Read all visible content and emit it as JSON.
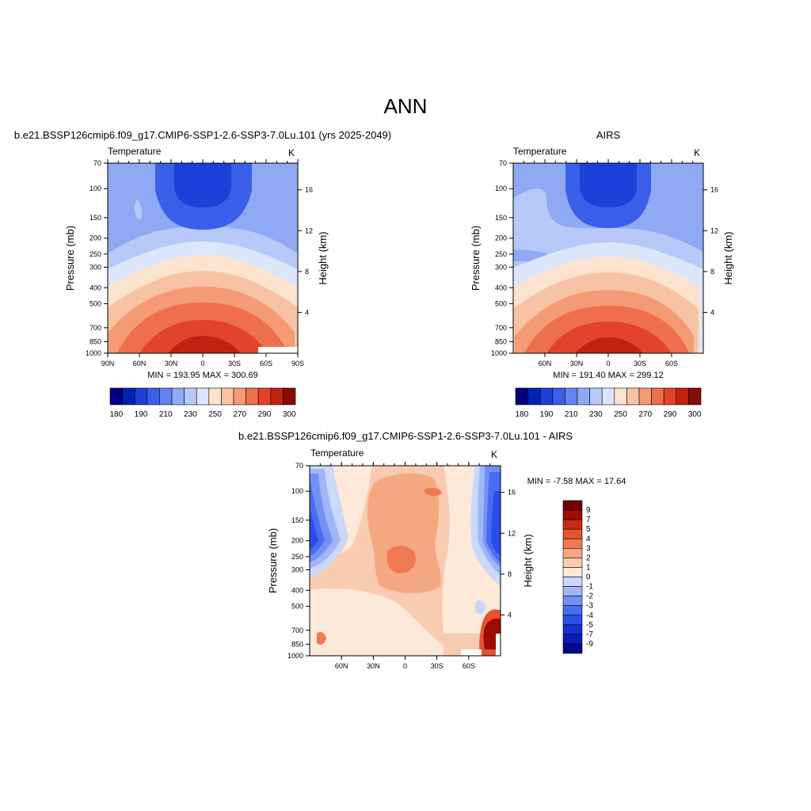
{
  "figure_title": "ANN",
  "colors": {
    "abs_scale": [
      "#00007f",
      "#0022b4",
      "#1e3fd9",
      "#3a5fe8",
      "#6383f0",
      "#8fa9f5",
      "#b7c9f8",
      "#dce6fa",
      "#fbe3cf",
      "#f8c3a4",
      "#f49b76",
      "#ef6e4b",
      "#e2432a",
      "#c12312",
      "#860c06"
    ],
    "diff_scale": [
      "#04088c",
      "#0a1cb4",
      "#1131d6",
      "#2a4ee8",
      "#4a6cf0",
      "#7291f4",
      "#a0b6f7",
      "#cad8f9",
      "#fde9d9",
      "#f9cbb0",
      "#f4a882",
      "#ef7a52",
      "#e6512e",
      "#c92a12",
      "#9b0d05",
      "#730303"
    ]
  },
  "chart_data": [
    {
      "type": "heatmap",
      "panel_title": "b.e21.BSSP126cmip6.f09_g17.CMIP6-SSP1-2.6-SSP3-7.0Lu.101 (yrs 2025-2049)",
      "variable": "Temperature",
      "units": "K",
      "ylabel": "Pressure (mb)",
      "ylabel_right": "Height (km)",
      "x_ticks": [
        "90N",
        "60N",
        "30N",
        "0",
        "30S",
        "60S",
        "90S"
      ],
      "x_range": [
        90,
        -90
      ],
      "y_ticks": [
        70,
        100,
        150,
        200,
        250,
        300,
        400,
        500,
        700,
        850,
        1000
      ],
      "y_range": [
        70,
        1000
      ],
      "y_log": true,
      "height_ticks": [
        4,
        8,
        12,
        16
      ],
      "stats_text": "MIN = 193.95  MAX = 300.69",
      "min": 193.95,
      "max": 300.69,
      "colorbar_labels": [
        "180",
        "190",
        "210",
        "230",
        "250",
        "270",
        "290",
        "300"
      ],
      "colorbar_orientation": "horizontal"
    },
    {
      "type": "heatmap",
      "panel_title": "AIRS",
      "variable": "Temperature",
      "units": "K",
      "ylabel": "Pressure (mb)",
      "ylabel_right": "Height (km)",
      "x_ticks": [
        "60N",
        "30N",
        "0",
        "30S",
        "60S"
      ],
      "x_range": [
        90,
        -90
      ],
      "y_ticks": [
        70,
        100,
        150,
        200,
        250,
        300,
        400,
        500,
        700,
        850,
        1000
      ],
      "y_range": [
        70,
        1000
      ],
      "y_log": true,
      "height_ticks": [
        4,
        8,
        12,
        16
      ],
      "stats_text": "MIN = 191.40  MAX = 299.12",
      "min": 191.4,
      "max": 299.12,
      "colorbar_labels": [
        "180",
        "190",
        "210",
        "230",
        "250",
        "270",
        "290",
        "300"
      ],
      "colorbar_orientation": "horizontal"
    },
    {
      "type": "heatmap",
      "panel_title": "b.e21.BSSP126cmip6.f09_g17.CMIP6-SSP1-2.6-SSP3-7.0Lu.101 - AIRS",
      "variable": "Temperature",
      "units": "K",
      "ylabel": "Pressure (mb)",
      "ylabel_right": "Height (km)",
      "x_ticks": [
        "60N",
        "30N",
        "0",
        "30S",
        "60S"
      ],
      "x_range": [
        90,
        -90
      ],
      "y_ticks": [
        70,
        100,
        150,
        200,
        250,
        300,
        400,
        500,
        700,
        850,
        1000
      ],
      "y_range": [
        70,
        1000
      ],
      "y_log": true,
      "height_ticks": [
        4,
        8,
        12,
        16
      ],
      "stats_text": "MIN =  -7.58  MAX =  17.64",
      "min": -7.58,
      "max": 17.64,
      "colorbar_labels": [
        "9",
        "7",
        "5",
        "4",
        "3",
        "2",
        "1",
        "0",
        "-1",
        "-2",
        "-3",
        "-4",
        "-5",
        "-7",
        "-9"
      ],
      "colorbar_orientation": "vertical"
    }
  ]
}
